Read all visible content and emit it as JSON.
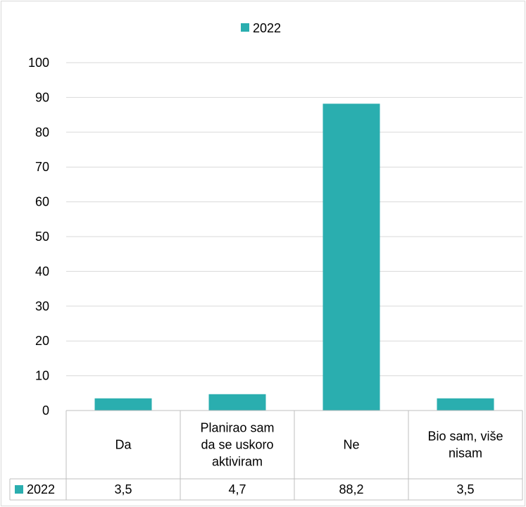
{
  "chart_data": {
    "type": "bar",
    "categories": [
      [
        "Da"
      ],
      [
        "Planirao sam",
        "da se uskoro",
        "aktiviram"
      ],
      [
        "Ne"
      ],
      [
        "Bio sam, više",
        "nisam"
      ]
    ],
    "series": [
      {
        "name": "2022",
        "values": [
          3.5,
          4.7,
          88.2,
          3.5
        ],
        "labels": [
          "3,5",
          "4,7",
          "88,2",
          "3,5"
        ],
        "color": "#2aaeaf"
      }
    ],
    "ylim": [
      0,
      100
    ],
    "yticks": [
      0,
      10,
      20,
      30,
      40,
      50,
      60,
      70,
      80,
      90,
      100
    ],
    "grid": true,
    "legend": "top",
    "data_table": true,
    "gridline_color": "#d9d9d9",
    "axis_color": "#bfbfbf"
  }
}
